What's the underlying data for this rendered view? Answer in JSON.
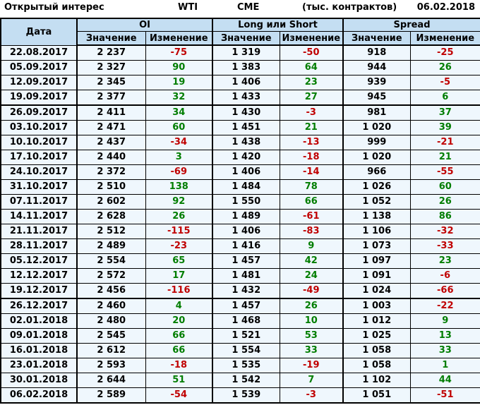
{
  "title_bar": {
    "label": "Открытый интерес",
    "instrument": "WTI",
    "exchange": "CME",
    "units": "(тыс. контрактов)",
    "report_date": "06.02.2018"
  },
  "table": {
    "date_header": "Дата",
    "groups": [
      {
        "label": "OI"
      },
      {
        "label": "Long или Short"
      },
      {
        "label": "Spread"
      }
    ],
    "sub_headers": {
      "value": "Значение",
      "change": "Изменение"
    },
    "thick_border_dates": [
      "26.09.2017",
      "26.12.2017"
    ],
    "colors": {
      "positive": "#007d00",
      "negative": "#c00000",
      "header_bg": "#c4def2",
      "cell_bg": "#eff7fd"
    }
  },
  "chart_data": {
    "type": "table",
    "title": "Открытый интерес WTI CME (тыс. контрактов) 06.02.2018",
    "columns": [
      "Дата",
      "OI Значение",
      "OI Изменение",
      "Long или Short Значение",
      "Long или Short Изменение",
      "Spread Значение",
      "Spread Изменение"
    ],
    "rows": [
      [
        "22.08.2017",
        2237,
        -75,
        1319,
        -50,
        918,
        -25
      ],
      [
        "05.09.2017",
        2327,
        90,
        1383,
        64,
        944,
        26
      ],
      [
        "12.09.2017",
        2345,
        19,
        1406,
        23,
        939,
        -5
      ],
      [
        "19.09.2017",
        2377,
        32,
        1433,
        27,
        945,
        6
      ],
      [
        "26.09.2017",
        2411,
        34,
        1430,
        -3,
        981,
        37
      ],
      [
        "03.10.2017",
        2471,
        60,
        1451,
        21,
        1020,
        39
      ],
      [
        "10.10.2017",
        2437,
        -34,
        1438,
        -13,
        999,
        -21
      ],
      [
        "17.10.2017",
        2440,
        3,
        1420,
        -18,
        1020,
        21
      ],
      [
        "24.10.2017",
        2372,
        -69,
        1406,
        -14,
        966,
        -55
      ],
      [
        "31.10.2017",
        2510,
        138,
        1484,
        78,
        1026,
        60
      ],
      [
        "07.11.2017",
        2602,
        92,
        1550,
        66,
        1052,
        26
      ],
      [
        "14.11.2017",
        2628,
        26,
        1489,
        -61,
        1138,
        86
      ],
      [
        "21.11.2017",
        2512,
        -115,
        1406,
        -83,
        1106,
        -32
      ],
      [
        "28.11.2017",
        2489,
        -23,
        1416,
        9,
        1073,
        -33
      ],
      [
        "05.12.2017",
        2554,
        65,
        1457,
        42,
        1097,
        23
      ],
      [
        "12.12.2017",
        2572,
        17,
        1481,
        24,
        1091,
        -6
      ],
      [
        "19.12.2017",
        2456,
        -116,
        1432,
        -49,
        1024,
        -66
      ],
      [
        "26.12.2017",
        2460,
        4,
        1457,
        26,
        1003,
        -22
      ],
      [
        "02.01.2018",
        2480,
        20,
        1468,
        10,
        1012,
        9
      ],
      [
        "09.01.2018",
        2545,
        66,
        1521,
        53,
        1025,
        13
      ],
      [
        "16.01.2018",
        2612,
        66,
        1554,
        33,
        1058,
        33
      ],
      [
        "23.01.2018",
        2593,
        -18,
        1535,
        -19,
        1058,
        1
      ],
      [
        "30.01.2018",
        2644,
        51,
        1542,
        7,
        1102,
        44
      ],
      [
        "06.02.2018",
        2589,
        -54,
        1539,
        -3,
        1051,
        -51
      ]
    ]
  }
}
